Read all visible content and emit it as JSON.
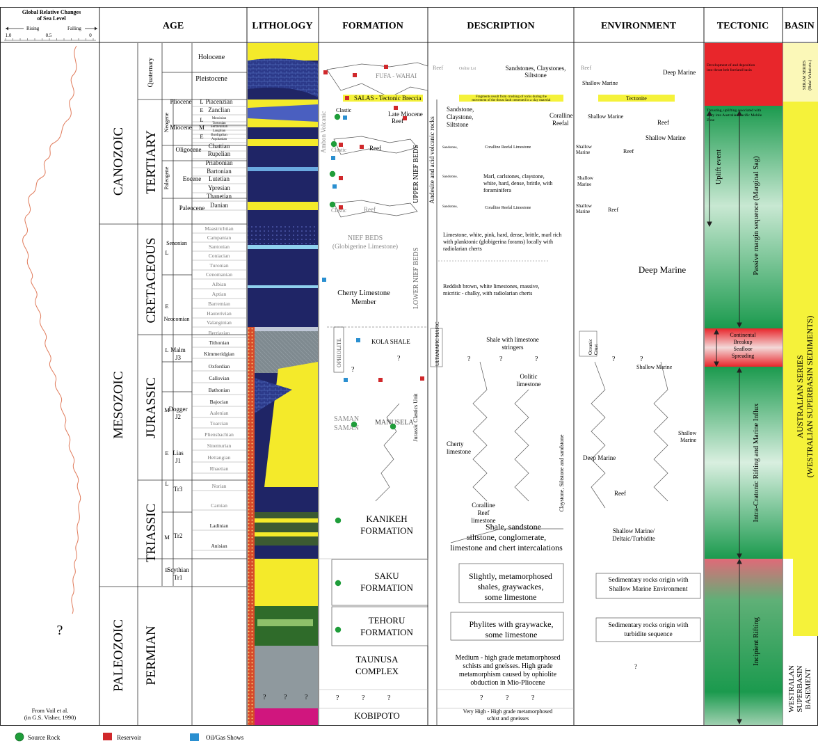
{
  "sea_level": {
    "title": "Global Relative Changes of Sea Level",
    "rising": "Rising",
    "falling": "Falling",
    "ticks": [
      "1.0",
      "0.5",
      "0"
    ],
    "question": "?",
    "source_line1": "From Vail et al.",
    "source_line2": "(in G.S. Visher, 1990)"
  },
  "headers": {
    "age": "AGE",
    "lithology": "LITHOLOGY",
    "formation": "FORMATION",
    "description": "DESCRIPTION",
    "environment": "ENVIRONMENT",
    "tectonic": "TECTONIC",
    "basin": "BASIN"
  },
  "eras": [
    "CANOZOIC",
    "MESOZOIC",
    "PALEOZOIC"
  ],
  "periods": [
    "Quaternary",
    "TERTIARY",
    "CRETACEOUS",
    "JURASSIC",
    "TRIASSIC",
    "PERMIAN"
  ],
  "subperiods": [
    "Neogene",
    "Paleogene"
  ],
  "epochs": [
    "Holocene",
    "Pleistocene",
    "Pliocene",
    "Miocene",
    "Oligocene",
    "Eocene",
    "Paleocene",
    "Senonian",
    "Neocomian",
    "Malm J3",
    "Dogger J2",
    "Lias J1",
    "Tr3",
    "Tr2",
    "Scythian Tr1"
  ],
  "epoch_subdivisions": [
    "L",
    "E",
    "L",
    "M",
    "E",
    "L",
    "E",
    "L",
    "M",
    "E",
    "L",
    "M",
    "E"
  ],
  "stages": [
    "Piacenzian",
    "Zanclian",
    "Messinian",
    "Tortonian",
    "Serravallian",
    "Langhian",
    "Burdigalian",
    "Aquitanian",
    "Chattian",
    "Rupelian",
    "Priabonian",
    "Bartonian",
    "Lutetian",
    "Ypresian",
    "Thanetian",
    "Danian",
    "Maastrichtian",
    "Campanian",
    "Santonian",
    "Coniacian",
    "Turonian",
    "Cenomanian",
    "Albian",
    "Aptian",
    "Barremian",
    "Hauterivian",
    "Valanginian",
    "Berriasian",
    "Tithonian",
    "Kimmeridgian",
    "Oxfordian",
    "Callovian",
    "Bathonian",
    "Bajocian",
    "Aalenian",
    "Toarcian",
    "Pliensbachian",
    "Sinemurian",
    "Hettangian",
    "Rhaetian",
    "Norian",
    "Carnian",
    "Ladinian",
    "Anisian"
  ],
  "formations": {
    "fufa": "FUFA - WAHAI",
    "salas": "SALAS - Tectonic Breccia",
    "ambon": "Ambon Volcanic",
    "late_miocene_reef": "Late Miocene Reef",
    "clastic": "Clastic",
    "reef": "Reef",
    "upper_nief": "UPPER NIEF BEDS",
    "nief_beds": "NIEF BEDS",
    "globigerine": "(Globigerine Limestone)",
    "cherty_member": "Cherty Limestone Member",
    "lower_nief": "LOWER NIEF BEDS",
    "ophiolite": "OPHIOLITE",
    "kola": "KOLA SHALE",
    "saman": "SAMAN SAMAN",
    "manusela": "MANUSELA",
    "jurassic_clastics": "Jurassic Clastics Unit",
    "kanikeh": "KANIKEH FORMATION",
    "saku": "SAKU FORMATION",
    "tehoru": "TEHORU FORMATION",
    "taunusa": "TAUNUSA COMPLEX",
    "kobipoto": "KOBIPOTO",
    "question": "?"
  },
  "description": {
    "reef": "Reef",
    "oolite": "Oolite Lst",
    "sandstones_claystones": "Sandstones, Claystones, Siltstone",
    "fragments": "Fragments result from crushing of rocks during the movement of the thrust fault cemented in a clay material",
    "andesite": "Andesite and acid volcanic rocks",
    "sandstone_claystone_siltstone": "Sandstone, Claystone, Siltstone",
    "coralline_reefal": "Coralline Reefal",
    "coralline_reefal_limestone": "Coralline Reefal Limestone",
    "marl": "Marl, carlstones, claystone, white, hard, dense, brittle, with foraminifera",
    "small_sst": "Sandstone, Claystone, Siltstone",
    "nief_desc": "Limestone, white, pink, hard, dense, brittle, marl rich with planktonic (globigerina forams) locally with radiolarian cherts",
    "reddish": "Reddish brown, white limestones, massive, micritic - chalky, with radiolarian cherts",
    "ultramafic": "ULTAMAFIC MAFIC",
    "shale_limestone": "Shale with limestone stringers",
    "oolitic": "Oolitic limestone",
    "cherty": "Cherty limestone",
    "coralline_reef_limestone": "Coralline Reef limestone",
    "claystone_siltstone_sandstone": "Claystone, Siltstone and sandstone",
    "kanikeh_desc": "Shale, sandstone siltstone, conglomerate, limestone and chert intercalations",
    "saku_desc": "Slightly, metamorphosed shales, graywackes, some limestone",
    "tehoru_desc": "Phylites with graywacke, some limestone",
    "taunusa_desc": "Medium - high grade metamorphosed schists and gneisses. High grade metamorphism caused by ophiolite obduction in Mio-Pliocene",
    "kobipoto_desc": "Very High - High grade metamorphosed schist and gneisses",
    "question": "?"
  },
  "environment": {
    "reef": "Reef",
    "shallow_marine": "Shallow Marine",
    "deep_marine": "Deep Marine",
    "tectonite": "Tectonite",
    "shallow": "Shallow Marine",
    "oceanic_crust": "Oceanic Crust",
    "deltaic": "Shallow Marine/ Deltaic/Turbidite",
    "sed_shallow": "Sedimentary rocks origin with Shallow Marine Environment",
    "sed_turbidite": "Sedimentary rocks origin with turbidite sequence",
    "question": "?"
  },
  "tectonic": {
    "foreland": "Development of and deposition into thrust belt foreland basin",
    "thrusting": "Thrusting, uplifting associated with entry into Australian/Pacific Mobile Zone",
    "uplift": "Uplift event",
    "passive": "Passive margin sequence (Marginal Sag)",
    "breakup": "Continental Breakup Seafloor Spreading",
    "intra": "Intra-Cratonic Rifting and Marine Influx",
    "incipient": "Incipient Rifting"
  },
  "basin": {
    "seram": "SERAM SERIES (Bula/ Wahai etc.)",
    "australian": "AUSTRALIAN SERIES (WESTRALIAN SUPERBASIN SEDIMENTS)",
    "westralian": "WESTRALAN SUPERBASIN BASEMENT"
  },
  "legend": {
    "source": "Source Rock",
    "reservoir": "Reservoir",
    "shows": "Oil/Gas Shows"
  },
  "colors": {
    "source": "#1f9d3a",
    "reservoir": "#d0282b",
    "shows": "#2a8fd0",
    "sea_curve": "#e07a5a",
    "tectonic_red": "#e8262b",
    "tectonic_green": "#1e9b52",
    "basin_yellow": "#f5f23a",
    "lith_navy": "#1f2566",
    "lith_yellow": "#f4ea2a"
  }
}
